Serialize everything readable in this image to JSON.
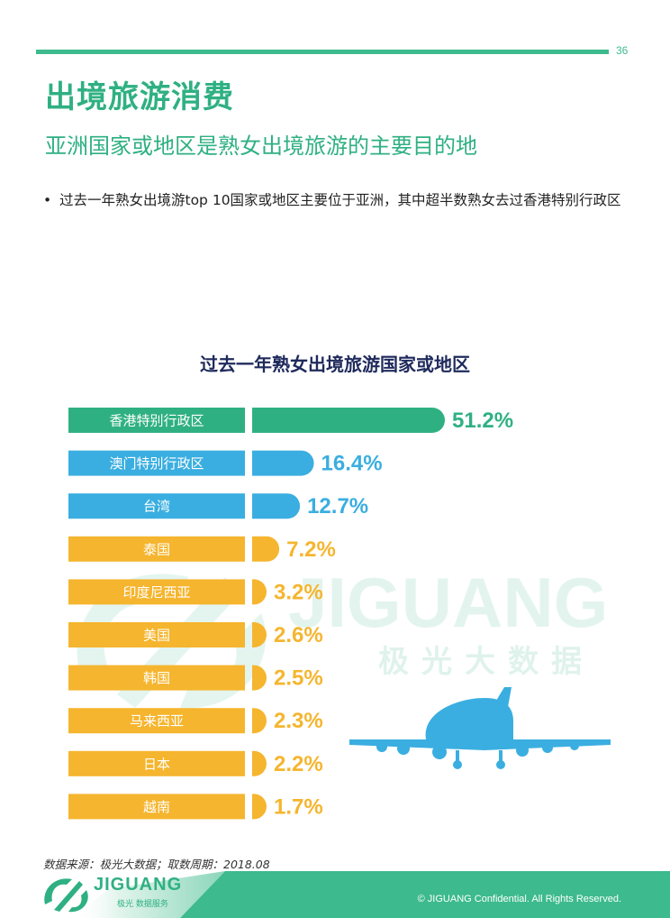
{
  "page": {
    "number": "36",
    "title": "出境旅游消费",
    "subtitle": "亚洲国家或地区是熟女出境旅游的主要目的地",
    "bullet": "过去一年熟女出境游top 10国家或地区主要位于亚洲，其中超半数熟女去过香港特别行政区",
    "bullet_marker": "•"
  },
  "chart_data": {
    "type": "bar",
    "orientation": "horizontal",
    "title": "过去一年熟女出境旅游国家或地区",
    "categories": [
      "香港特别行政区",
      "澳门特别行政区",
      "台湾",
      "泰国",
      "印度尼西亚",
      "美国",
      "韩国",
      "马来西亚",
      "日本",
      "越南"
    ],
    "values": [
      51.2,
      16.4,
      12.7,
      7.2,
      3.2,
      2.6,
      2.5,
      2.3,
      2.2,
      1.7
    ],
    "value_labels": [
      "51.2%",
      "16.4%",
      "12.7%",
      "7.2%",
      "3.2%",
      "2.6%",
      "2.5%",
      "2.3%",
      "2.2%",
      "1.7%"
    ],
    "unit": "%",
    "colors": [
      "#2fb083",
      "#3aaee0",
      "#3aaee0",
      "#f5b52e",
      "#f5b52e",
      "#f5b52e",
      "#f5b52e",
      "#f5b52e",
      "#f5b52e",
      "#f5b52e"
    ],
    "value_label_colors": [
      "#2fb083",
      "#3aaee0",
      "#3aaee0",
      "#f5b52e",
      "#f5b52e",
      "#f5b52e",
      "#f5b52e",
      "#f5b52e",
      "#f5b52e",
      "#f5b52e"
    ],
    "xlim": [
      0,
      51.2
    ]
  },
  "watermark": {
    "brand": "JIGUANG",
    "cn": "极光大数据"
  },
  "source": "数据来源：极光大数据；取数周期：2018.08",
  "footer": {
    "copyright": "© JIGUANG Confidential. All Rights Reserved.",
    "logo_text": "JIGUANG",
    "logo_sub": "极光 数据服务",
    "band_color": "#3dba8e"
  }
}
